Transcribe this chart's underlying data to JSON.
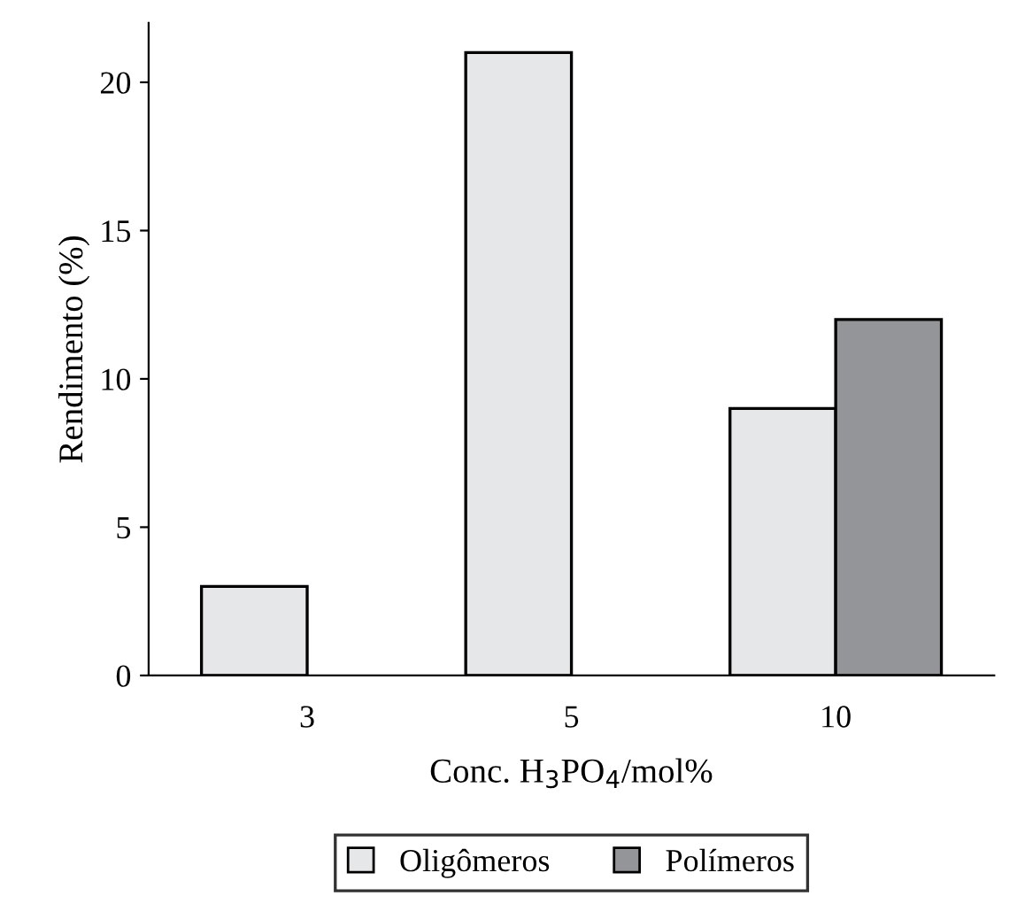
{
  "chart_data": {
    "type": "bar",
    "xlabel": "Conc. H$_{3}$PO$_{4}$/mol%",
    "ylabel": "Rendimento (%)",
    "categories": [
      "3",
      "5",
      "10"
    ],
    "series": [
      {
        "name": "Oligômeros",
        "color": "#e6e7e9",
        "values": [
          3,
          21,
          9
        ]
      },
      {
        "name": "Polímeros",
        "color": "#939598",
        "values": [
          null,
          null,
          12
        ]
      }
    ],
    "ylim": [
      0,
      22
    ],
    "yticks": [
      0,
      5,
      10,
      15,
      20
    ],
    "grid": false,
    "legend": "bottom"
  }
}
